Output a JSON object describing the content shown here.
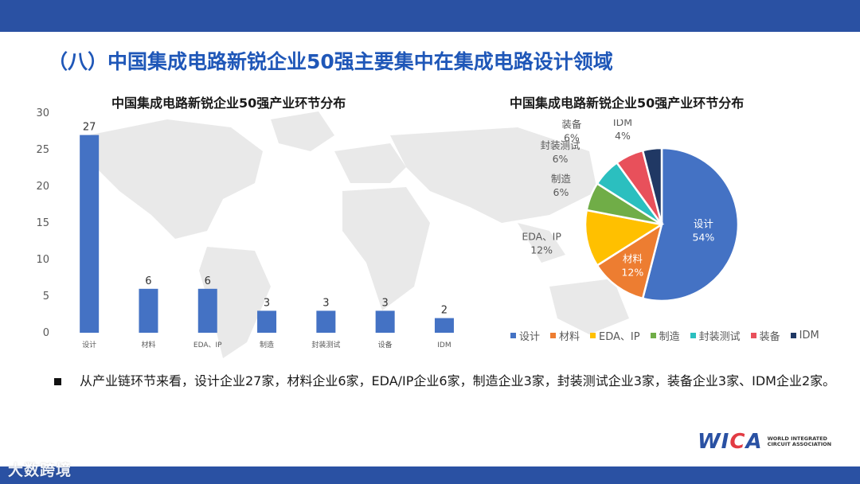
{
  "page_title": "（八）中国集成电路新锐企业50强主要集中在集成电路设计领域",
  "summary": "从产业链环节来看，设计企业27家，材料企业6家，EDA/IP企业6家，制造企业3家，封装测试企业3家，装备企业3家、IDM企业2家。",
  "logo": {
    "mark_prefix": "WI",
    "mark_accent": "C",
    "mark_suffix": "A",
    "subtitle": "WORLD INTEGRATED CIRCUIT ASSOCIATION"
  },
  "watermark": "大数跨境",
  "colors": {
    "bar": "#4472c4",
    "header_bar": "#2a51a3",
    "title": "#1f57b8"
  },
  "chart_data": [
    {
      "type": "bar",
      "title": "中国集成电路新锐企业50强产业环节分布",
      "categories": [
        "设计",
        "材料",
        "EDA、IP",
        "制造",
        "封装测试",
        "设备",
        "IDM"
      ],
      "values": [
        27,
        6,
        6,
        3,
        3,
        3,
        2
      ],
      "yticks": [
        0,
        5,
        10,
        15,
        20,
        25,
        30
      ],
      "ylim": [
        0,
        30
      ],
      "grid": false,
      "data_labels": true
    },
    {
      "type": "pie",
      "title": "中国集成电路新锐企业50强产业环节分布",
      "legend_position": "bottom",
      "slices": [
        {
          "label": "设计",
          "value": 54,
          "pct_label": "54%",
          "color": "#4472c4"
        },
        {
          "label": "材料",
          "value": 12,
          "pct_label": "12%",
          "color": "#ed7d31"
        },
        {
          "label": "EDA、IP",
          "value": 12,
          "pct_label": "12%",
          "color": "#ffc000"
        },
        {
          "label": "制造",
          "value": 6,
          "pct_label": "6%",
          "color": "#70ad47"
        },
        {
          "label": "封装测试",
          "value": 6,
          "pct_label": "6%",
          "color": "#2bbfbf"
        },
        {
          "label": "装备",
          "value": 6,
          "pct_label": "6%",
          "color": "#e8505b"
        },
        {
          "label": "IDM",
          "value": 4,
          "pct_label": "4%",
          "color": "#203864"
        }
      ]
    }
  ]
}
